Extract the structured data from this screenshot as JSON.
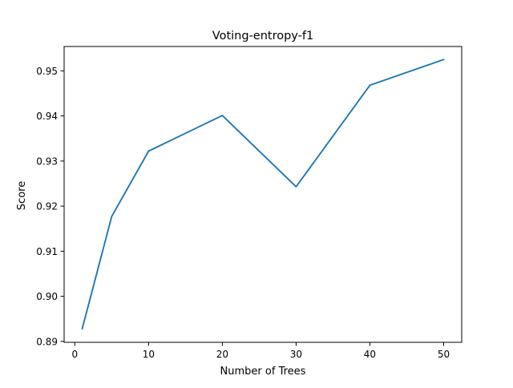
{
  "chart_data": {
    "type": "line",
    "title": "Voting-entropy-f1",
    "xlabel": "Number of Trees",
    "ylabel": "Score",
    "xlim": [
      -1.45,
      52.45
    ],
    "ylim": [
      0.8898,
      0.9554
    ],
    "xticks": [
      0,
      10,
      20,
      30,
      40,
      50
    ],
    "xtick_labels": [
      "0",
      "10",
      "20",
      "30",
      "40",
      "50"
    ],
    "yticks": [
      0.89,
      0.9,
      0.91,
      0.92,
      0.93,
      0.94,
      0.95
    ],
    "ytick_labels": [
      "0.89",
      "0.90",
      "0.91",
      "0.92",
      "0.93",
      "0.94",
      "0.95"
    ],
    "grid": false,
    "series": [
      {
        "color": "#1f77b4",
        "x": [
          1,
          5,
          10,
          20,
          30,
          40,
          50
        ],
        "y": [
          0.8928,
          0.9177,
          0.9322,
          0.9401,
          0.9243,
          0.9468,
          0.9525
        ]
      }
    ]
  }
}
